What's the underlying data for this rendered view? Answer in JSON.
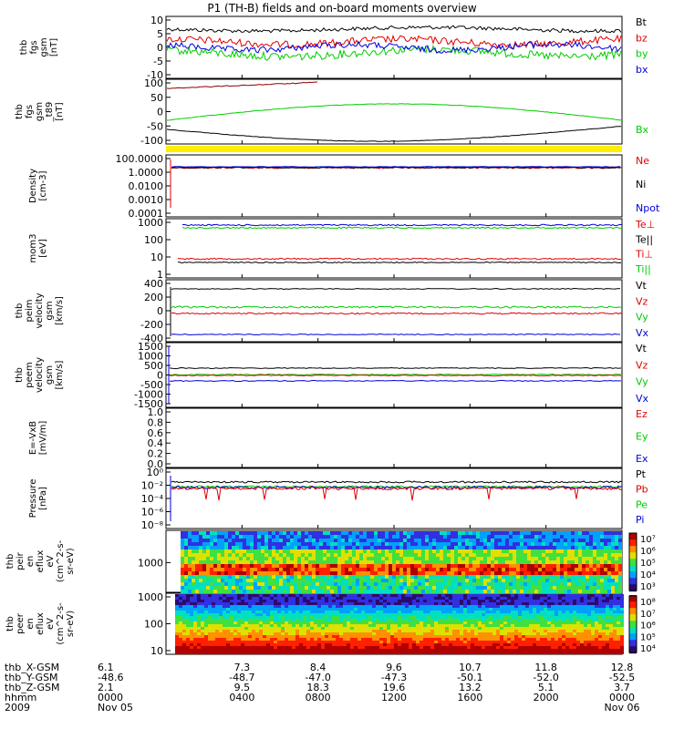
{
  "title": "P1 (TH-B) fields and on-board moments overview",
  "colors": {
    "black": "#000000",
    "red": "#e00000",
    "green": "#00cc00",
    "blue": "#0000dd",
    "dark_red": "#8b0000",
    "yellow": "#ffee00"
  },
  "chart_data": [
    {
      "type": "line",
      "ylabel": [
        "thb",
        "fgs",
        "gsm",
        "[nT]"
      ],
      "ylim": [
        -10,
        10
      ],
      "yticks": [
        "10",
        "5",
        "0",
        "-5",
        "-10"
      ],
      "series": [
        {
          "name": "Bt",
          "color": "#000000"
        },
        {
          "name": "bz",
          "color": "#e00000"
        },
        {
          "name": "by",
          "color": "#00cc00"
        },
        {
          "name": "bx",
          "color": "#0000dd"
        }
      ]
    },
    {
      "type": "line",
      "ylabel": [
        "thb",
        "fgs",
        "gsm",
        "_t89",
        "[nT]"
      ],
      "ylim": [
        -120,
        100
      ],
      "yticks": [
        "100",
        "50",
        "0",
        "-50",
        "-100"
      ],
      "series": [
        {
          "name": "Bx",
          "color": "#00cc00"
        }
      ]
    },
    {
      "type": "line",
      "ylabel": [
        "Density",
        "[cm-3]"
      ],
      "yscale": "log",
      "yticks": [
        "100.0000",
        "1.0000",
        "0.0100",
        "0.0010",
        "0.0001"
      ],
      "series": [
        {
          "name": "Ne",
          "color": "#e00000"
        },
        {
          "name": "Ni",
          "color": "#000000"
        },
        {
          "name": "Npot",
          "color": "#0000dd"
        }
      ]
    },
    {
      "type": "line",
      "ylabel": [
        "mom3",
        "[eV]"
      ],
      "yscale": "log",
      "yticks": [
        "1000",
        "100",
        "10",
        "1"
      ],
      "series": [
        {
          "name": "Te⊥",
          "color": "#e00000"
        },
        {
          "name": "Te||",
          "color": "#000000"
        },
        {
          "name": "Ti⊥",
          "color": "#e00000"
        },
        {
          "name": "Ti||",
          "color": "#00cc00"
        }
      ]
    },
    {
      "type": "line",
      "ylabel": [
        "thb",
        "peim",
        "velocity",
        "gsm",
        "[km/s]"
      ],
      "ylim": [
        -400,
        400
      ],
      "yticks": [
        "400",
        "200",
        "0",
        "-200",
        "-400"
      ],
      "series": [
        {
          "name": "Vt",
          "color": "#000000"
        },
        {
          "name": "Vz",
          "color": "#e00000"
        },
        {
          "name": "Vy",
          "color": "#00cc00"
        },
        {
          "name": "Vx",
          "color": "#0000dd"
        }
      ]
    },
    {
      "type": "line",
      "ylabel": [
        "thb",
        "peem",
        "velocity",
        "gsm",
        "[km/s]"
      ],
      "ylim": [
        -1500,
        1500
      ],
      "yticks": [
        "1500",
        "1000",
        "500",
        "0",
        "-500",
        "-1000",
        "-1500"
      ],
      "series": [
        {
          "name": "Vt",
          "color": "#000000"
        },
        {
          "name": "Vz",
          "color": "#e00000"
        },
        {
          "name": "Vy",
          "color": "#00cc00"
        },
        {
          "name": "Vx",
          "color": "#0000dd"
        }
      ]
    },
    {
      "type": "line",
      "ylabel": [
        "E=-VxB",
        "[mV/m]"
      ],
      "ylim": [
        0,
        1
      ],
      "yticks": [
        "1.0",
        "0.8",
        "0.6",
        "0.4",
        "0.2",
        "0.0"
      ],
      "series": [
        {
          "name": "Ez",
          "color": "#e00000"
        },
        {
          "name": "Ey",
          "color": "#00cc00"
        },
        {
          "name": "Ex",
          "color": "#0000dd"
        }
      ]
    },
    {
      "type": "line",
      "ylabel": [
        "Pressure",
        "[nPa]"
      ],
      "yscale": "log",
      "yticks": [
        "10⁰",
        "10⁻²",
        "10⁻⁴",
        "10⁻⁶",
        "10⁻⁸"
      ],
      "series": [
        {
          "name": "Pt",
          "color": "#000000"
        },
        {
          "name": "Pb",
          "color": "#e00000"
        },
        {
          "name": "Pe",
          "color": "#00cc00"
        },
        {
          "name": "Pi",
          "color": "#0000dd"
        }
      ]
    },
    {
      "type": "heatmap",
      "ylabel": [
        "thb",
        "peir",
        "en",
        "eflux",
        "eV",
        "(cm^2-s-",
        "sr-eV)"
      ],
      "yticks": [
        "1000"
      ],
      "colorbar": [
        "10⁷",
        "10⁶",
        "10⁵",
        "10⁴",
        "10³"
      ]
    },
    {
      "type": "heatmap",
      "ylabel": [
        "thb",
        "peer",
        "en",
        "eflux",
        "eV",
        "(cm^2-s-",
        "sr-eV)"
      ],
      "yticks": [
        "1000",
        "100",
        "10"
      ],
      "colorbar": [
        "10⁸",
        "10⁷",
        "10⁶",
        "10⁵",
        "10⁴"
      ]
    }
  ],
  "xaxis": {
    "row_labels": [
      "thb_X-GSM",
      "thb_Y-GSM",
      "thb_Z-GSM",
      "hhmm",
      "2009"
    ],
    "columns": [
      {
        "values": [
          "6.1",
          "-48.6",
          "2.1",
          "0000",
          "Nov 05"
        ]
      },
      {
        "values": [
          "7.3",
          "-48.7",
          "9.5",
          "0400",
          ""
        ]
      },
      {
        "values": [
          "8.4",
          "-47.0",
          "18.3",
          "0800",
          ""
        ]
      },
      {
        "values": [
          "9.6",
          "-47.3",
          "19.6",
          "1200",
          ""
        ]
      },
      {
        "values": [
          "10.7",
          "-50.1",
          "13.2",
          "1600",
          ""
        ]
      },
      {
        "values": [
          "11.8",
          "-52.0",
          "5.1",
          "2000",
          ""
        ]
      },
      {
        "values": [
          "12.8",
          "-52.5",
          "3.7",
          "0000",
          "Nov 06"
        ]
      }
    ]
  }
}
